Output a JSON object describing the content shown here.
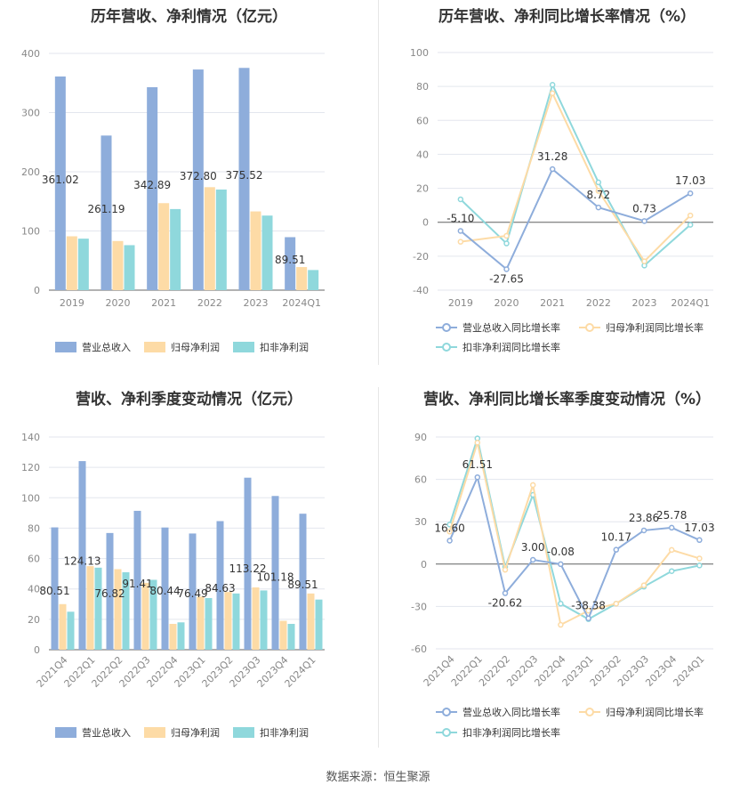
{
  "source": "数据来源：恒生聚源",
  "colors": {
    "revenue": "#8eaddb",
    "net_profit": "#fddba6",
    "deducted_profit": "#8fd8dc"
  },
  "chart_data": [
    {
      "id": "annual_amount",
      "type": "bar",
      "title": "历年营收、净利情况（亿元）",
      "categories": [
        "2019",
        "2020",
        "2021",
        "2022",
        "2023",
        "2024Q1"
      ],
      "ylim": [
        0,
        400
      ],
      "yticks": [
        "0",
        "100",
        "200",
        "300",
        "400"
      ],
      "series": [
        {
          "name": "营业总收入",
          "values": [
            361.02,
            261.19,
            342.89,
            372.8,
            375.52,
            89.51
          ],
          "labels": [
            "361.02",
            "261.19",
            "342.89",
            "372.80",
            "375.52",
            "89.51"
          ]
        },
        {
          "name": "归母净利润",
          "values": [
            91,
            83,
            147,
            174,
            133,
            39
          ]
        },
        {
          "name": "扣非净利润",
          "values": [
            87,
            76,
            137,
            170,
            126,
            34
          ]
        }
      ],
      "legend_position": "bottom",
      "grid": true
    },
    {
      "id": "annual_growth",
      "type": "line",
      "title": "历年营收、净利同比增长率情况（%）",
      "categories": [
        "2019",
        "2020",
        "2021",
        "2022",
        "2023",
        "2024Q1"
      ],
      "ylim": [
        -40,
        100
      ],
      "yticks": [
        "-40",
        "-20",
        "0",
        "20",
        "40",
        "60",
        "80",
        "100"
      ],
      "series": [
        {
          "name": "营业总收入同比增长率",
          "values": [
            -5.1,
            -27.65,
            31.28,
            8.72,
            0.73,
            17.03
          ],
          "labels": [
            "-5.10",
            "-27.65",
            "31.28",
            "8.72",
            "0.73",
            "17.03"
          ]
        },
        {
          "name": "归母净利润同比增长率",
          "values": [
            -11.5,
            -8.0,
            76.0,
            18.5,
            -23.0,
            4.0
          ]
        },
        {
          "name": "扣非净利润同比增长率",
          "values": [
            13.5,
            -12.5,
            81.0,
            23.5,
            -25.5,
            -1.5
          ]
        }
      ],
      "legend_position": "bottom",
      "grid": true
    },
    {
      "id": "quarterly_amount",
      "type": "bar",
      "title": "营收、净利季度变动情况（亿元）",
      "categories": [
        "2021Q4",
        "2022Q1",
        "2022Q2",
        "2022Q3",
        "2022Q4",
        "2023Q1",
        "2023Q2",
        "2023Q3",
        "2023Q4",
        "2024Q1"
      ],
      "ylim": [
        0,
        140
      ],
      "yticks": [
        "0",
        "20",
        "40",
        "60",
        "80",
        "100",
        "120",
        "140"
      ],
      "series": [
        {
          "name": "营业总收入",
          "values": [
            80.51,
            124.13,
            76.82,
            91.41,
            80.44,
            76.49,
            84.63,
            113.22,
            101.18,
            89.51
          ],
          "labels": [
            "80.51",
            "124.13",
            "76.82",
            "91.41",
            "80.44",
            "76.49",
            "84.63",
            "113.22",
            "101.18",
            "89.51"
          ]
        },
        {
          "name": "归母净利润",
          "values": [
            30,
            55,
            53,
            44,
            17,
            35,
            38,
            41,
            19,
            37
          ]
        },
        {
          "name": "扣非净利润",
          "values": [
            25,
            54,
            51,
            46,
            18,
            34,
            37,
            39,
            17,
            33
          ]
        }
      ],
      "legend_position": "bottom",
      "grid": true
    },
    {
      "id": "quarterly_growth",
      "type": "line",
      "title": "营收、净利同比增长率季度变动情况（%）",
      "categories": [
        "2021Q4",
        "2022Q1",
        "2022Q2",
        "2022Q3",
        "2022Q4",
        "2023Q1",
        "2023Q2",
        "2023Q3",
        "2023Q4",
        "2024Q1"
      ],
      "ylim": [
        -60,
        90
      ],
      "yticks": [
        "-60",
        "-30",
        "0",
        "30",
        "60",
        "90"
      ],
      "series": [
        {
          "name": "营业总收入同比增长率",
          "values": [
            16.6,
            61.51,
            -20.62,
            3.0,
            -0.08,
            -38.38,
            10.17,
            23.86,
            25.78,
            17.03
          ],
          "labels": [
            "16.60",
            "61.51",
            "-20.62",
            "3.00",
            "-0.08",
            "-38.38",
            "10.17",
            "23.86",
            "25.78",
            "17.03"
          ]
        },
        {
          "name": "归母净利润同比增长率",
          "values": [
            23,
            86,
            -4,
            56,
            -43,
            -33,
            -28,
            -15,
            10,
            4
          ]
        },
        {
          "name": "扣非净利润同比增长率",
          "values": [
            28,
            89,
            -2,
            49,
            -28,
            -39,
            -28,
            -16,
            -5,
            -1
          ]
        }
      ],
      "legend_position": "bottom",
      "grid": true
    }
  ]
}
